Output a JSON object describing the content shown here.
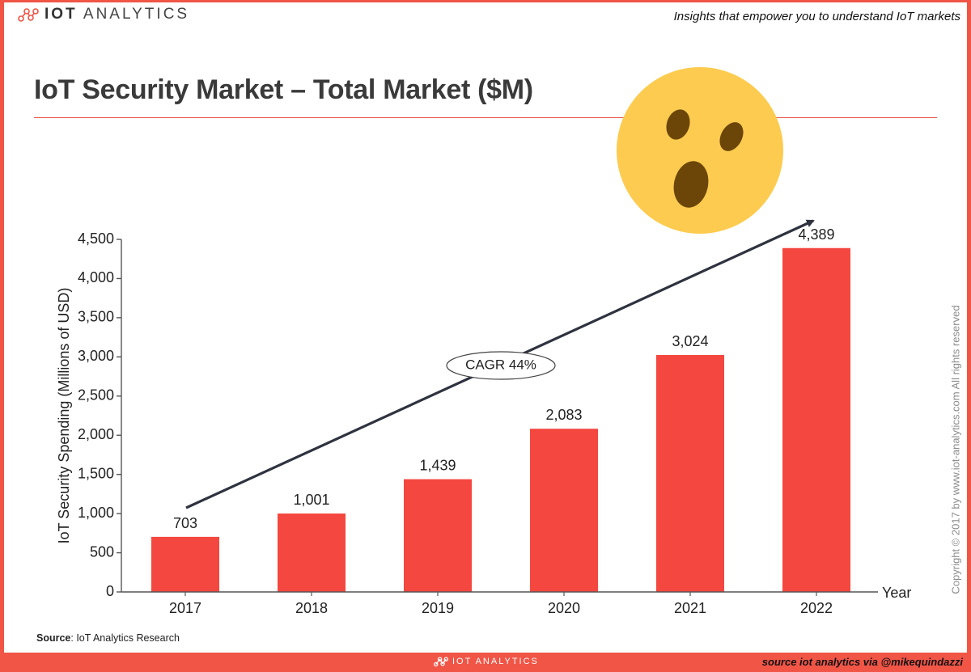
{
  "header": {
    "logo_strong": "IOT",
    "logo_light": "ANALYTICS",
    "tagline": "Insights that empower you to understand IoT markets"
  },
  "title": "IoT Security Market – Total Market ($M)",
  "emoji": "astonished-face-icon",
  "copyright": "Copyright © 2017 by www.iot-analytics.com All rights reserved",
  "source": {
    "label": "Source",
    "text": ": IoT Analytics Research"
  },
  "footer": {
    "logo_text": "IOT ANALYTICS",
    "credit": "source iot analytics via @mikequindazzi"
  },
  "colors": {
    "brand_red": "#f05546",
    "bar": "#f4473f",
    "arrow": "#2f3340",
    "emoji_face": "#fdcb4f",
    "emoji_features": "#6b4608"
  },
  "chart_data": {
    "type": "bar",
    "categories": [
      "2017",
      "2018",
      "2019",
      "2020",
      "2021",
      "2022"
    ],
    "values": [
      703,
      1001,
      1439,
      2083,
      3024,
      4389
    ],
    "value_labels": [
      "703",
      "1,001",
      "1,439",
      "2,083",
      "3,024",
      "4,389"
    ],
    "yticks": [
      0,
      500,
      1000,
      1500,
      2000,
      2500,
      3000,
      3500,
      4000,
      4500
    ],
    "ytick_labels": [
      "0",
      "500",
      "1,000",
      "1,500",
      "2,000",
      "2,500",
      "3,000",
      "3,500",
      "4,000",
      "4,500"
    ],
    "ylim": [
      0,
      4500
    ],
    "ylabel": "IoT Security Spending (Millions of USD)",
    "xlabel": "Year",
    "annotation": "CAGR 44%",
    "grid": false,
    "legend": "none"
  }
}
